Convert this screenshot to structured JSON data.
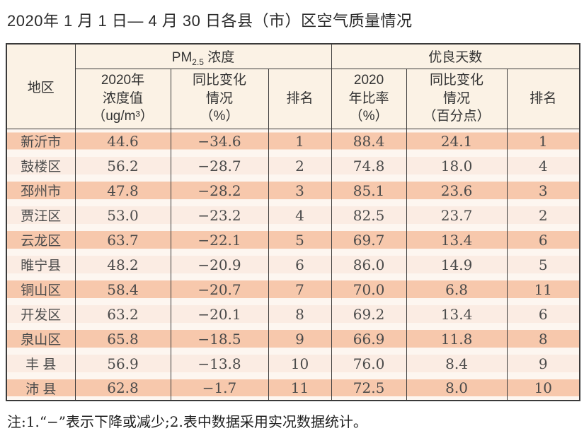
{
  "page": {
    "title": "2020年 1 月 1 日— 4 月 30 日各县（市）区空气质量情况",
    "footnote": "注:1.“−”表示下降或减少;2.表中数据采用实况数据统计。"
  },
  "colors": {
    "row_band_odd": "#F7C8AC",
    "row_band_even": "#FBECE3",
    "row_gap": "#FDF6F0",
    "header_bg": "#FBF2E5",
    "border": "#3A3A3A"
  },
  "table": {
    "header": {
      "region": "地区",
      "pm_group": {
        "prefix": "PM",
        "sub": "2.5",
        "suffix": " 浓度"
      },
      "good_group": "优良天数",
      "pm_value": "2020年\n浓度值\n（ug/m³）",
      "pm_change": "同比变化\n情况\n（%）",
      "pm_rank": "排名",
      "good_ratio": "2020\n年比率\n（%）",
      "good_change": "同比变化\n情况\n（百分点）",
      "good_rank": "排名"
    },
    "rows": [
      {
        "region": "新沂市",
        "pm_value": "44.6",
        "pm_change": "−34.6",
        "pm_rank": "1",
        "good_ratio": "88.4",
        "good_change": "24.1",
        "good_rank": "1"
      },
      {
        "region": "鼓楼区",
        "pm_value": "56.2",
        "pm_change": "−28.7",
        "pm_rank": "2",
        "good_ratio": "74.8",
        "good_change": "18.0",
        "good_rank": "4"
      },
      {
        "region": "邳州市",
        "pm_value": "47.8",
        "pm_change": "−28.2",
        "pm_rank": "3",
        "good_ratio": "85.1",
        "good_change": "23.6",
        "good_rank": "3"
      },
      {
        "region": "贾汪区",
        "pm_value": "53.0",
        "pm_change": "−23.2",
        "pm_rank": "4",
        "good_ratio": "82.5",
        "good_change": "23.7",
        "good_rank": "2"
      },
      {
        "region": "云龙区",
        "pm_value": "63.7",
        "pm_change": "−22.1",
        "pm_rank": "5",
        "good_ratio": "69.7",
        "good_change": "13.4",
        "good_rank": "6"
      },
      {
        "region": "睢宁县",
        "pm_value": "48.2",
        "pm_change": "−20.9",
        "pm_rank": "6",
        "good_ratio": "86.0",
        "good_change": "14.9",
        "good_rank": "5"
      },
      {
        "region": "铜山区",
        "pm_value": "58.4",
        "pm_change": "−20.7",
        "pm_rank": "7",
        "good_ratio": "70.0",
        "good_change": "6.8",
        "good_rank": "11"
      },
      {
        "region": "开发区",
        "pm_value": "63.2",
        "pm_change": "−20.1",
        "pm_rank": "8",
        "good_ratio": "69.2",
        "good_change": "13.4",
        "good_rank": "6"
      },
      {
        "region": "泉山区",
        "pm_value": "65.8",
        "pm_change": "−18.5",
        "pm_rank": "9",
        "good_ratio": "66.9",
        "good_change": "11.8",
        "good_rank": "8"
      },
      {
        "region": "丰 县",
        "pm_value": "56.9",
        "pm_change": "−13.8",
        "pm_rank": "10",
        "good_ratio": "76.0",
        "good_change": "8.4",
        "good_rank": "9"
      },
      {
        "region": "沛 县",
        "pm_value": "62.8",
        "pm_change": "−1.7",
        "pm_rank": "11",
        "good_ratio": "72.5",
        "good_change": "8.0",
        "good_rank": "10"
      }
    ]
  }
}
